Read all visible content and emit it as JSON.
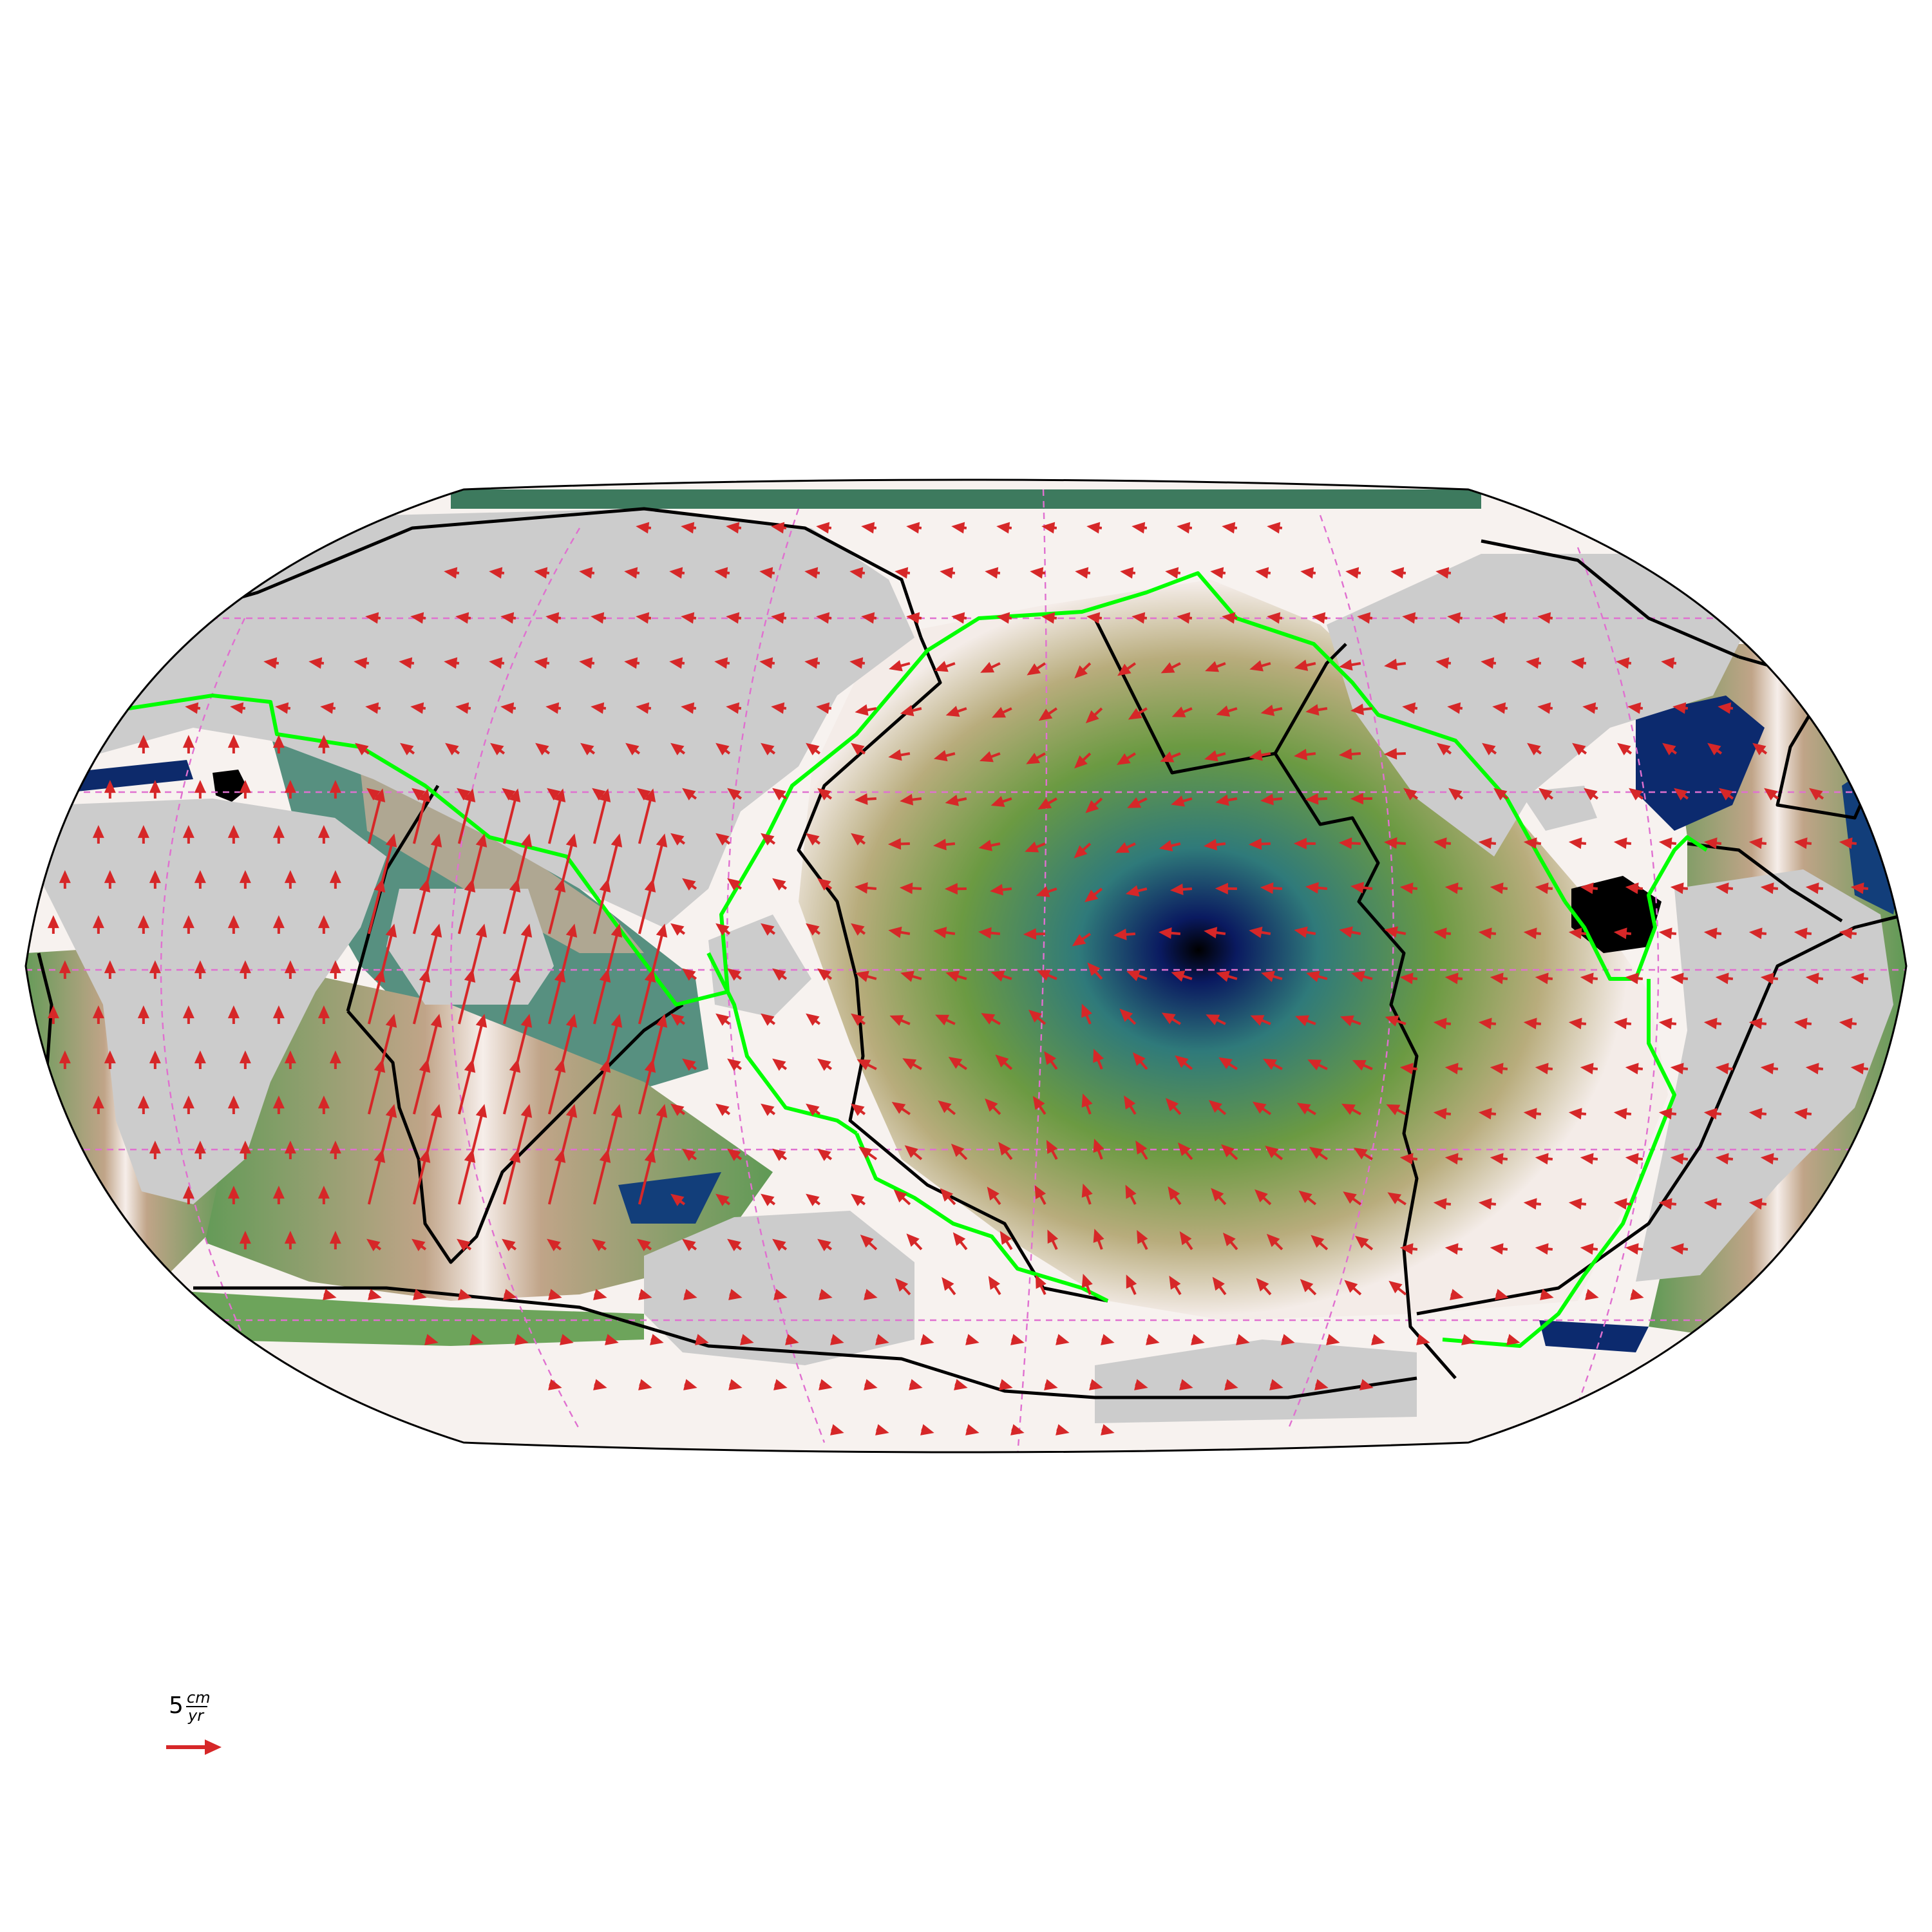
{
  "legend": {
    "scale_value": "5",
    "unit_numerator": "cm",
    "unit_denominator": "yr",
    "arrow_color": "#d62728"
  },
  "map": {
    "projection": "Robinson",
    "layers": [
      "seafloor-age-colormap",
      "continents",
      "plate-boundaries",
      "subduction-zones",
      "graticule",
      "plate-velocity-vectors"
    ],
    "colors": {
      "continent": "#cccccc",
      "plate_boundary": "#000000",
      "subduction_zone": "#00ff00",
      "velocity_arrow": "#d62728",
      "graticule": "#e070d0",
      "young_crust": "#f4ece8",
      "mid_crust": "#6b9a42",
      "old_crust": "#0a1a60"
    }
  }
}
